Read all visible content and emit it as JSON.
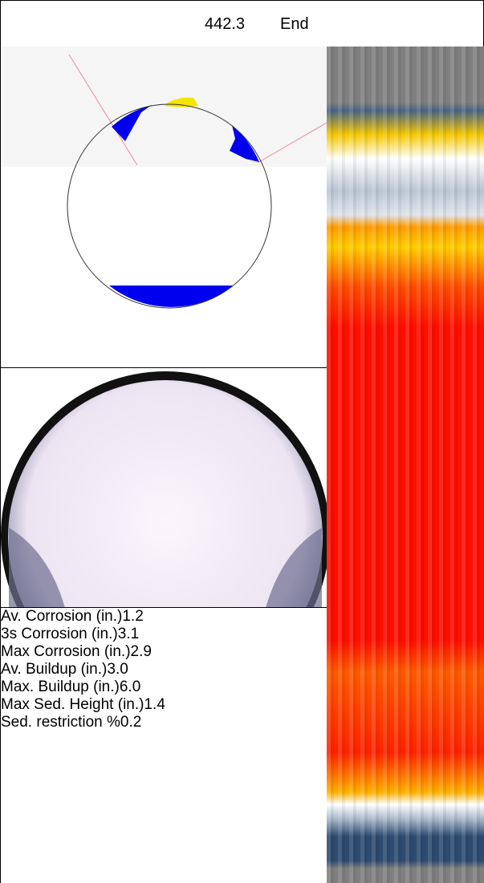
{
  "header": {
    "position": "442.3",
    "label": "End"
  },
  "table": {
    "rows": [
      [
        "Av. Corrosion (in.)",
        "1.2"
      ],
      [
        "3s Corrosion (in.)",
        "3.1"
      ],
      [
        "Max Corrosion (in.)",
        "2.9"
      ],
      [
        "Av. Buildup (in.)",
        "3.0"
      ],
      [
        "Max. Buildup (in.)",
        "6.0"
      ],
      [
        "Max Sed. Height (in.)",
        "1.4"
      ],
      [
        "Sed. restriction %",
        "0.2"
      ]
    ]
  }
}
